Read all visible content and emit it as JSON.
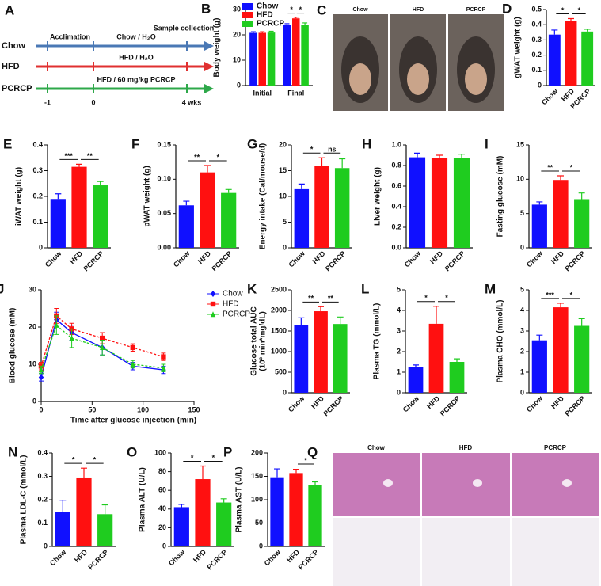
{
  "timeline": {
    "panel": "A",
    "rows": [
      {
        "name": "Chow",
        "color": "#4a78b5",
        "label": "Chow / H₂O"
      },
      {
        "name": "HFD",
        "color": "#e03030",
        "label": "HFD / H₂O"
      },
      {
        "name": "PCRCP",
        "color": "#2ea84a",
        "label": "HFD / 60 mg/kg PCRCP"
      }
    ],
    "acclimation": "Acclimation",
    "sample": "Sample collection",
    "ticks": [
      "-1",
      "0",
      "4 wks"
    ]
  },
  "photos": {
    "panel": "C",
    "labels": [
      "Chow",
      "HFD",
      "PCRCP"
    ]
  },
  "histology": {
    "panel": "Q",
    "labels": [
      "Chow",
      "HFD",
      "PCRCP"
    ]
  },
  "chart_data": [
    {
      "type": "grouped_bar",
      "panel": "B",
      "ylabel": "Body weight (g)",
      "categories": [
        "Initial",
        "Final"
      ],
      "series": [
        {
          "name": "Chow",
          "color": "#1010ff",
          "values": [
            20.8,
            23.8
          ],
          "errors": [
            0.4,
            0.6
          ]
        },
        {
          "name": "HFD",
          "color": "#ff1010",
          "values": [
            20.8,
            26.5
          ],
          "errors": [
            0.4,
            0.5
          ]
        },
        {
          "name": "PCRCP",
          "color": "#1fcc1f",
          "values": [
            20.9,
            24.0
          ],
          "errors": [
            0.5,
            0.7
          ]
        }
      ],
      "ylim": [
        0,
        30
      ],
      "yticks": [
        0,
        10,
        20,
        30
      ],
      "significance": [
        "*",
        "*"
      ],
      "legend": "upper left"
    },
    {
      "type": "bar",
      "panel": "D",
      "ylabel": "gWAT weight (g)",
      "categories": [
        "Chow",
        "HFD",
        "PCRCP"
      ],
      "colors": [
        "#1010ff",
        "#ff1010",
        "#1fcc1f"
      ],
      "values": [
        0.335,
        0.425,
        0.355
      ],
      "errors": [
        0.03,
        0.015,
        0.015
      ],
      "ylim": [
        0,
        0.5
      ],
      "yticks": [
        0,
        0.1,
        0.2,
        0.3,
        0.4,
        0.5
      ],
      "significance": [
        "*",
        "*"
      ]
    },
    {
      "type": "bar",
      "panel": "E",
      "ylabel": "iWAT weight (g)",
      "categories": [
        "Chow",
        "HFD",
        "PCRCP"
      ],
      "colors": [
        "#1010ff",
        "#ff1010",
        "#1fcc1f"
      ],
      "values": [
        0.19,
        0.315,
        0.243
      ],
      "errors": [
        0.02,
        0.01,
        0.015
      ],
      "ylim": [
        0,
        0.4
      ],
      "yticks": [
        0,
        0.1,
        0.2,
        0.3,
        0.4
      ],
      "significance": [
        "***",
        "**"
      ]
    },
    {
      "type": "bar",
      "panel": "F",
      "ylabel": "pWAT weight (g)",
      "categories": [
        "Chow",
        "HFD",
        "PCRCP"
      ],
      "colors": [
        "#1010ff",
        "#ff1010",
        "#1fcc1f"
      ],
      "values": [
        0.062,
        0.11,
        0.08
      ],
      "errors": [
        0.006,
        0.01,
        0.005
      ],
      "ylim": [
        0,
        0.15
      ],
      "yticks": [
        {
          "value": 0,
          "label": "0.00"
        },
        0.05,
        {
          "value": 0.1,
          "label": "0.10"
        },
        0.15
      ],
      "significance": [
        "**",
        "*"
      ]
    },
    {
      "type": "bar",
      "panel": "G",
      "ylabel": "Energy intake (Cal/mouse/d)",
      "categories": [
        "Chow",
        "HFD",
        "PCRCP"
      ],
      "colors": [
        "#1010ff",
        "#ff1010",
        "#1fcc1f"
      ],
      "values": [
        11.4,
        16.0,
        15.5
      ],
      "errors": [
        1.0,
        1.5,
        1.8
      ],
      "ylim": [
        0,
        20
      ],
      "yticks": [
        0,
        5,
        10,
        15,
        20
      ],
      "significance": [
        "*",
        "ns"
      ]
    },
    {
      "type": "bar",
      "panel": "H",
      "ylabel": "Liver weight (g)",
      "categories": [
        "Chow",
        "HFD",
        "PCRCP"
      ],
      "colors": [
        "#1010ff",
        "#ff1010",
        "#1fcc1f"
      ],
      "values": [
        0.88,
        0.87,
        0.87
      ],
      "errors": [
        0.04,
        0.03,
        0.04
      ],
      "ylim": [
        0,
        1.0
      ],
      "yticks": [
        {
          "value": 0,
          "label": "0.0"
        },
        0.2,
        0.4,
        0.6,
        0.8,
        {
          "value": 1.0,
          "label": "1.0"
        }
      ],
      "significance": [
        null,
        null
      ]
    },
    {
      "type": "bar",
      "panel": "I",
      "ylabel": "Fasting glucose (mM)",
      "categories": [
        "Chow",
        "HFD",
        "PCRCP"
      ],
      "colors": [
        "#1010ff",
        "#ff1010",
        "#1fcc1f"
      ],
      "values": [
        6.3,
        9.9,
        7.1
      ],
      "errors": [
        0.4,
        0.6,
        0.9
      ],
      "ylim": [
        0,
        15
      ],
      "yticks": [
        0,
        5,
        10,
        15
      ],
      "significance": [
        "**",
        "*"
      ]
    },
    {
      "type": "line",
      "panel": "J",
      "ylabel": "Blood glucose (mM)",
      "xlabel": "Time after glucose injection (min)",
      "x": [
        0,
        15,
        30,
        60,
        90,
        120
      ],
      "series": [
        {
          "name": "Chow",
          "color": "#1010ff",
          "marker": "diamond",
          "values": [
            6.5,
            22.0,
            18.5,
            14.5,
            9.5,
            8.5
          ],
          "errors": [
            1.0,
            2.0,
            2.0,
            2.0,
            1.0,
            1.0
          ]
        },
        {
          "name": "HFD",
          "color": "#ff1010",
          "marker": "square",
          "values": [
            9.5,
            23.0,
            19.5,
            17.0,
            14.5,
            12.0
          ],
          "errors": [
            1.0,
            2.0,
            1.5,
            1.5,
            1.0,
            1.0
          ]
        },
        {
          "name": "PCRCP",
          "color": "#1fcc1f",
          "marker": "triangle",
          "values": [
            8.5,
            20.5,
            17.0,
            14.5,
            10.0,
            9.0
          ],
          "errors": [
            1.0,
            2.5,
            2.5,
            2.0,
            1.0,
            1.0
          ]
        }
      ],
      "xlim": [
        0,
        150
      ],
      "xticks": [
        0,
        50,
        100,
        150
      ],
      "ylim": [
        0,
        30
      ],
      "yticks": [
        0,
        10,
        20,
        30
      ],
      "legend": "upper right"
    },
    {
      "type": "bar",
      "panel": "K",
      "ylabel": [
        "Glucose total AUC",
        "(10³ min*mg/dL)"
      ],
      "categories": [
        "Chow",
        "HFD",
        "PCRCP"
      ],
      "colors": [
        "#1010ff",
        "#ff1010",
        "#1fcc1f"
      ],
      "values": [
        1650,
        1980,
        1670
      ],
      "errors": [
        170,
        110,
        170
      ],
      "ylim": [
        0,
        2500
      ],
      "yticks": [
        0,
        500,
        1000,
        1500,
        2000,
        2500
      ],
      "significance": [
        "**",
        "**"
      ]
    },
    {
      "type": "bar",
      "panel": "L",
      "ylabel": "Plasma TG (mmol/L)",
      "categories": [
        "Chow",
        "HFD",
        "PCRCP"
      ],
      "colors": [
        "#1010ff",
        "#ff1010",
        "#1fcc1f"
      ],
      "values": [
        1.25,
        3.35,
        1.5
      ],
      "errors": [
        0.1,
        0.85,
        0.15
      ],
      "ylim": [
        0,
        5
      ],
      "yticks": [
        0,
        1,
        2,
        3,
        4,
        5
      ],
      "significance": [
        "*",
        "*"
      ]
    },
    {
      "type": "bar",
      "panel": "M",
      "ylabel": "Plasma CHO (mmol/L)",
      "categories": [
        "Chow",
        "HFD",
        "PCRCP"
      ],
      "colors": [
        "#1010ff",
        "#ff1010",
        "#1fcc1f"
      ],
      "values": [
        2.55,
        4.15,
        3.25
      ],
      "errors": [
        0.25,
        0.2,
        0.35
      ],
      "ylim": [
        0,
        5
      ],
      "yticks": [
        0,
        1,
        2,
        3,
        4,
        5
      ],
      "significance": [
        "***",
        "*"
      ]
    },
    {
      "type": "bar",
      "panel": "N",
      "ylabel": "Plasma LDL-C (mmol/L)",
      "categories": [
        "Chow",
        "HFD",
        "PCRCP"
      ],
      "colors": [
        "#1010ff",
        "#ff1010",
        "#1fcc1f"
      ],
      "values": [
        0.148,
        0.295,
        0.138
      ],
      "errors": [
        0.05,
        0.04,
        0.04
      ],
      "ylim": [
        0,
        0.4
      ],
      "yticks": [
        0,
        0.1,
        0.2,
        0.3,
        0.4
      ],
      "significance": [
        "*",
        "*"
      ]
    },
    {
      "type": "bar",
      "panel": "O",
      "ylabel": "Plasma ALT (U/L)",
      "categories": [
        "Chow",
        "HFD",
        "PCRCP"
      ],
      "colors": [
        "#1010ff",
        "#ff1010",
        "#1fcc1f"
      ],
      "values": [
        42,
        72,
        47
      ],
      "errors": [
        3,
        14,
        4
      ],
      "ylim": [
        0,
        100
      ],
      "yticks": [
        0,
        20,
        40,
        60,
        80,
        100
      ],
      "significance": [
        "*",
        "*"
      ]
    },
    {
      "type": "bar",
      "panel": "P",
      "ylabel": "Plasma AST (U/L)",
      "categories": [
        "Chow",
        "HFD",
        "PCRCP"
      ],
      "colors": [
        "#1010ff",
        "#ff1010",
        "#1fcc1f"
      ],
      "values": [
        148,
        157,
        131
      ],
      "errors": [
        18,
        8,
        7
      ],
      "ylim": [
        0,
        200
      ],
      "yticks": [
        0,
        50,
        100,
        150,
        200
      ],
      "significance": [
        null,
        "*"
      ]
    }
  ]
}
